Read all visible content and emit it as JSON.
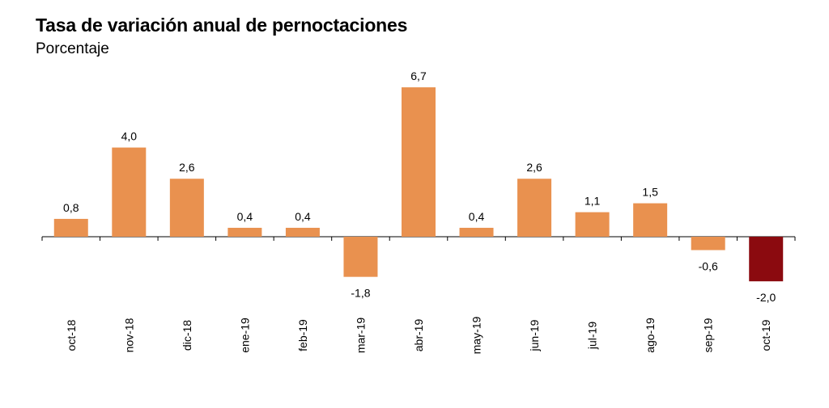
{
  "chart_data": {
    "type": "bar",
    "title": "Tasa de variación anual de pernoctaciones",
    "subtitle": "Porcentaje",
    "categories": [
      "oct-18",
      "nov-18",
      "dic-18",
      "ene-19",
      "feb-19",
      "mar-19",
      "abr-19",
      "may-19",
      "jun-19",
      "jul-19",
      "ago-19",
      "sep-19",
      "oct-19"
    ],
    "values": [
      0.8,
      4.0,
      2.6,
      0.4,
      0.4,
      -1.8,
      6.7,
      0.4,
      2.6,
      1.1,
      1.5,
      -0.6,
      -2.0
    ],
    "value_labels": [
      "0,8",
      "4,0",
      "2,6",
      "0,4",
      "0,4",
      "-1,8",
      "6,7",
      "0,4",
      "2,6",
      "1,1",
      "1,5",
      "-0,6",
      "-2,0"
    ],
    "colors": {
      "bar": "#E9914F",
      "highlight": "#8B0A0F",
      "axis": "#000000"
    },
    "highlight_index": 12,
    "ylim": [
      -2.0,
      6.7
    ],
    "grid": false,
    "legend": "none"
  }
}
